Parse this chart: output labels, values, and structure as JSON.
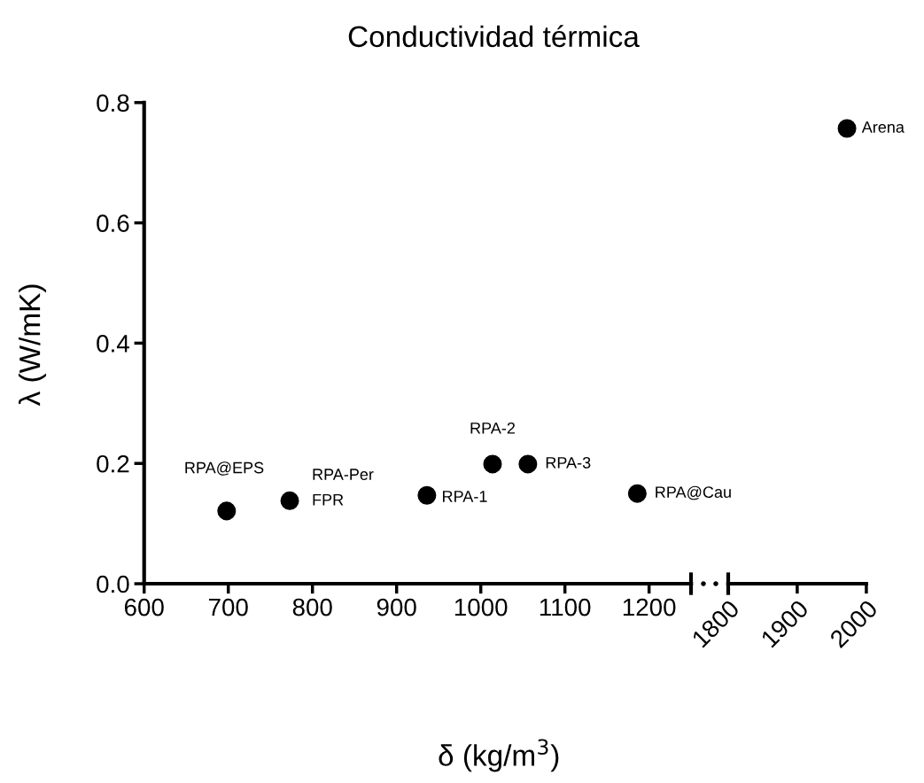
{
  "chart_data": [
    {
      "type": "scatter",
      "title": "Conductividad térmica",
      "xlabel": "δ (kg/m$^{3}$)",
      "ylabel": "λ (W/mK)",
      "xlim": [
        600,
        1250
      ],
      "xticks": [
        600,
        700,
        800,
        900,
        1000,
        1100,
        1200
      ],
      "ylim": [
        0,
        0.8
      ],
      "yticks": [
        {
          "value": 0,
          "label": "0.0"
        },
        0.2,
        0.4,
        0.6,
        0.8
      ],
      "marker": "circle",
      "grid": false,
      "series": [
        {
          "color": "#000000",
          "x": [
            698,
            773,
            936,
            1014,
            1056,
            1186
          ],
          "values": [
            0.121,
            0.138,
            0.147,
            0.199,
            0.199,
            0.15
          ]
        }
      ],
      "annotations": [
        {
          "text": "RPA@EPS",
          "x": 698,
          "y": 0.121
        },
        {
          "text": "RPA-Per\nFPR",
          "x": 773,
          "y": 0.138
        },
        {
          "text": "RPA-1",
          "x": 936,
          "y": 0.147
        },
        {
          "text": "RPA-2",
          "x": 1014,
          "y": 0.199
        },
        {
          "text": "RPA-3",
          "x": 1056,
          "y": 0.199
        },
        {
          "text": "RPA@Cau",
          "x": 1186,
          "y": 0.15
        }
      ]
    },
    {
      "type": "scatter",
      "xlim": [
        1800,
        2000
      ],
      "xticks": [
        1800,
        1900,
        2000
      ],
      "ylim": [
        0,
        0.8
      ],
      "tick_labels": "x",
      "marker": "circle",
      "grid": false,
      "series": [
        {
          "color": "#000000",
          "x": [
            1972
          ],
          "values": [
            0.757
          ]
        }
      ],
      "annotations": [
        {
          "text": "Arena",
          "x": 1972,
          "y": 0.757
        }
      ]
    }
  ]
}
